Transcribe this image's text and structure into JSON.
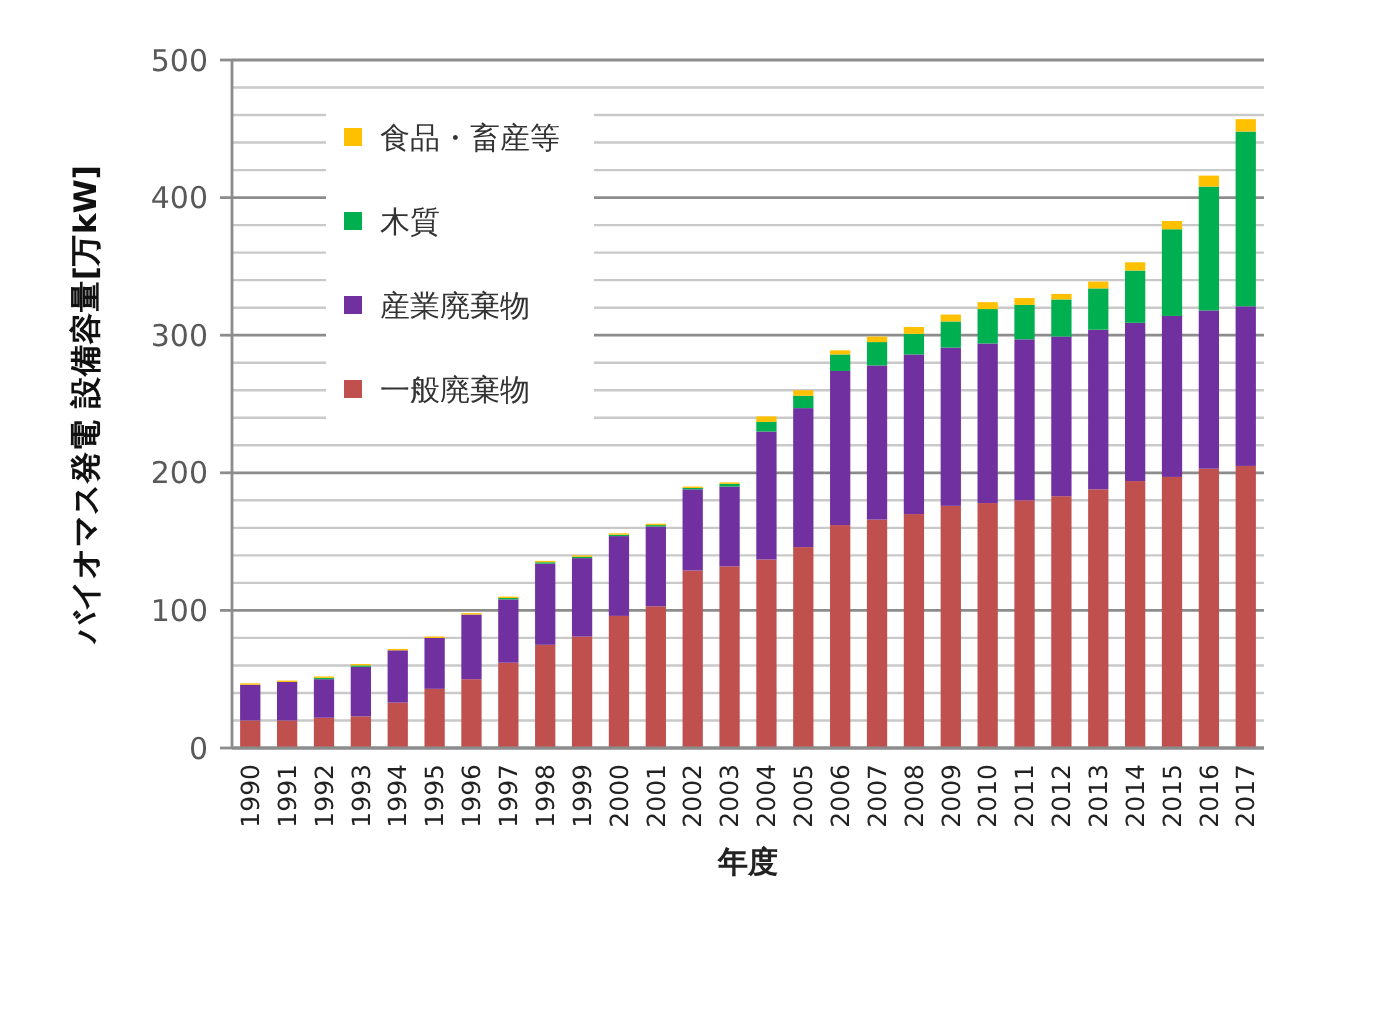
{
  "chart_data": {
    "type": "bar",
    "stacked": true,
    "xlabel": "年度",
    "ylabel": "バイオマス発電 設備容量[万kW]",
    "categories": [
      "1990",
      "1991",
      "1992",
      "1993",
      "1994",
      "1995",
      "1996",
      "1997",
      "1998",
      "1999",
      "2000",
      "2001",
      "2002",
      "2003",
      "2004",
      "2005",
      "2006",
      "2007",
      "2008",
      "2009",
      "2010",
      "2011",
      "2012",
      "2013",
      "2014",
      "2015",
      "2016",
      "2017"
    ],
    "series": [
      {
        "name": "一般廃棄物",
        "color": "#c0504d",
        "values": [
          20,
          20,
          22,
          23,
          33,
          43,
          50,
          62,
          75,
          81,
          96,
          103,
          129,
          132,
          137,
          146,
          162,
          166,
          170,
          176,
          178,
          180,
          183,
          188,
          194,
          197,
          203,
          205
        ]
      },
      {
        "name": "産業廃棄物",
        "color": "#7030a0",
        "values": [
          26,
          28,
          28,
          36,
          38,
          37,
          47,
          46,
          59,
          57,
          58,
          58,
          59,
          58,
          93,
          101,
          112,
          112,
          116,
          115,
          116,
          117,
          116,
          116,
          115,
          117,
          115,
          116
        ]
      },
      {
        "name": "木質",
        "color": "#00b050",
        "values": [
          0,
          0,
          1,
          1,
          0,
          0,
          0,
          1,
          1,
          1,
          1,
          1,
          1,
          2,
          7,
          9,
          12,
          17,
          15,
          19,
          25,
          25,
          27,
          30,
          38,
          63,
          90,
          127
        ]
      },
      {
        "name": "食品・畜産等",
        "color": "#ffc000",
        "values": [
          1,
          1,
          1,
          1,
          1,
          1,
          1,
          1,
          1,
          1,
          1,
          1,
          1,
          1,
          4,
          4,
          3,
          4,
          5,
          5,
          5,
          5,
          4,
          5,
          6,
          6,
          8,
          9
        ]
      }
    ],
    "ylim": [
      0,
      500
    ],
    "yticks": [
      0,
      {
        "value": 20,
        "label": null
      },
      {
        "value": 40,
        "label": null
      },
      {
        "value": 60,
        "label": null
      },
      {
        "value": 80,
        "label": null
      },
      100,
      {
        "value": 120,
        "label": null
      },
      {
        "value": 140,
        "label": null
      },
      {
        "value": 160,
        "label": null
      },
      {
        "value": 180,
        "label": null
      },
      200,
      {
        "value": 220,
        "label": null
      },
      {
        "value": 240,
        "label": null
      },
      {
        "value": 260,
        "label": null
      },
      {
        "value": 280,
        "label": null
      },
      300,
      {
        "value": 320,
        "label": null
      },
      {
        "value": 340,
        "label": null
      },
      {
        "value": 360,
        "label": null
      },
      {
        "value": 380,
        "label": null
      },
      400,
      {
        "value": 420,
        "label": null
      },
      {
        "value": 440,
        "label": null
      },
      {
        "value": 460,
        "label": null
      },
      {
        "value": 480,
        "label": null
      },
      500
    ],
    "grid": true,
    "legend": "top left"
  }
}
